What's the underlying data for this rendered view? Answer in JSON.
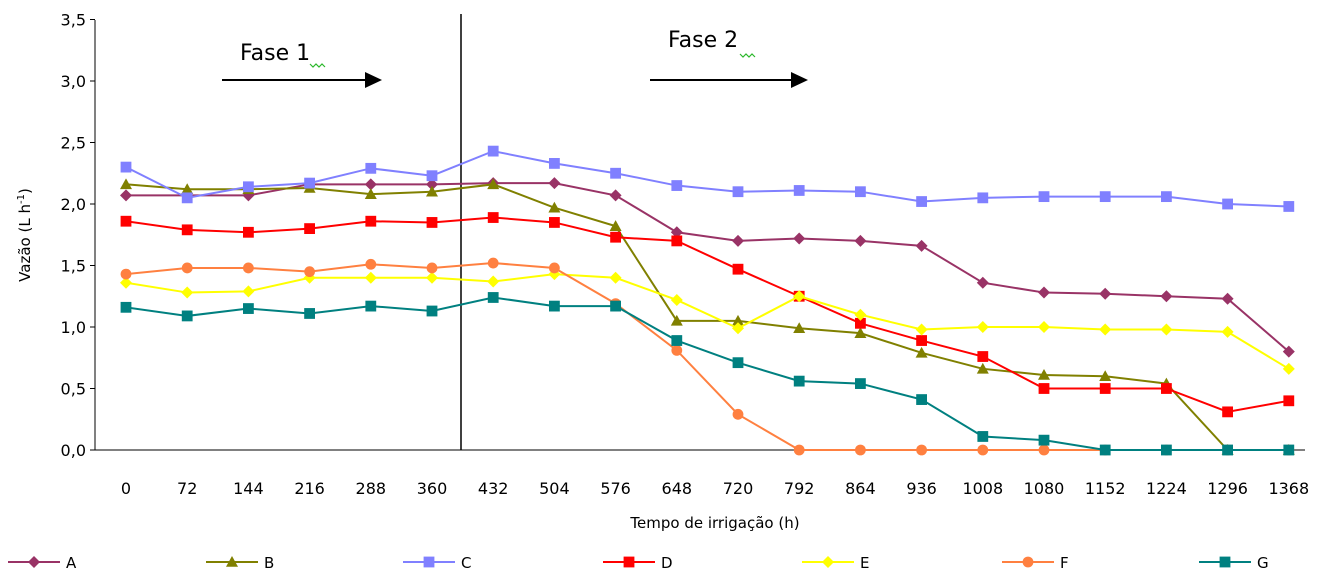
{
  "chart_data": {
    "type": "line",
    "title": "",
    "xlabel": "Tempo de irrigação (h)",
    "ylabel_main": "Vazão (L h",
    "ylabel_sup": "-1",
    "ylabel_end": ")",
    "ylim": [
      0,
      3.5
    ],
    "y_ticks": [
      "0,0",
      "0,5",
      "1,0",
      "1,5",
      "2,0",
      "2,5",
      "3,0",
      "3,5"
    ],
    "y_tick_values": [
      0,
      0.5,
      1.0,
      1.5,
      2.0,
      2.5,
      3.0,
      3.5
    ],
    "x": [
      "0",
      "72",
      "144",
      "216",
      "288",
      "360",
      "432",
      "504",
      "576",
      "648",
      "720",
      "792",
      "864",
      "936",
      "1008",
      "1080",
      "1152",
      "1224",
      "1296",
      "1368"
    ],
    "grid": false,
    "legend_position": "bottom",
    "phases": [
      {
        "label": "Fase 1"
      },
      {
        "label": "Fase 2"
      }
    ],
    "series": [
      {
        "name": "A",
        "color": "#993366",
        "marker": "diamond",
        "values": [
          2.07,
          2.07,
          2.07,
          2.16,
          2.16,
          2.16,
          2.17,
          2.17,
          2.07,
          1.77,
          1.7,
          1.72,
          1.7,
          1.66,
          1.36,
          1.28,
          1.27,
          1.25,
          1.23,
          0.8
        ]
      },
      {
        "name": "B",
        "color": "#808000",
        "marker": "triangle",
        "values": [
          2.16,
          2.12,
          2.12,
          2.13,
          2.08,
          2.1,
          2.16,
          1.97,
          1.82,
          1.05,
          1.05,
          0.99,
          0.95,
          0.79,
          0.66,
          0.61,
          0.6,
          0.54,
          0.0,
          0.0
        ]
      },
      {
        "name": "C",
        "color": "#8080FF",
        "marker": "square",
        "values": [
          2.3,
          2.05,
          2.14,
          2.17,
          2.29,
          2.23,
          2.43,
          2.33,
          2.25,
          2.15,
          2.1,
          2.11,
          2.1,
          2.02,
          2.05,
          2.06,
          2.06,
          2.06,
          2.0,
          1.98
        ]
      },
      {
        "name": "D",
        "color": "#FF0000",
        "marker": "square",
        "values": [
          1.86,
          1.79,
          1.77,
          1.8,
          1.86,
          1.85,
          1.89,
          1.85,
          1.73,
          1.7,
          1.47,
          1.25,
          1.03,
          0.89,
          0.76,
          0.5,
          0.5,
          0.5,
          0.31,
          0.4
        ]
      },
      {
        "name": "E",
        "color": "#FFFF00",
        "marker": "diamond",
        "values": [
          1.36,
          1.28,
          1.29,
          1.4,
          1.4,
          1.4,
          1.37,
          1.43,
          1.4,
          1.22,
          0.99,
          1.25,
          1.1,
          0.98,
          1.0,
          1.0,
          0.98,
          0.98,
          0.96,
          0.66
        ]
      },
      {
        "name": "F",
        "color": "#FF8040",
        "marker": "circle",
        "values": [
          1.43,
          1.48,
          1.48,
          1.45,
          1.51,
          1.48,
          1.52,
          1.48,
          1.19,
          0.81,
          0.29,
          0.0,
          0.0,
          0.0,
          0.0,
          0.0,
          0.0,
          0.0,
          0.0,
          0.0
        ]
      },
      {
        "name": "G",
        "color": "#008080",
        "marker": "square",
        "values": [
          1.16,
          1.09,
          1.15,
          1.11,
          1.17,
          1.13,
          1.24,
          1.17,
          1.17,
          0.89,
          0.71,
          0.56,
          0.54,
          0.41,
          0.11,
          0.08,
          0.0,
          0.0,
          0.0,
          0.0
        ]
      }
    ]
  }
}
